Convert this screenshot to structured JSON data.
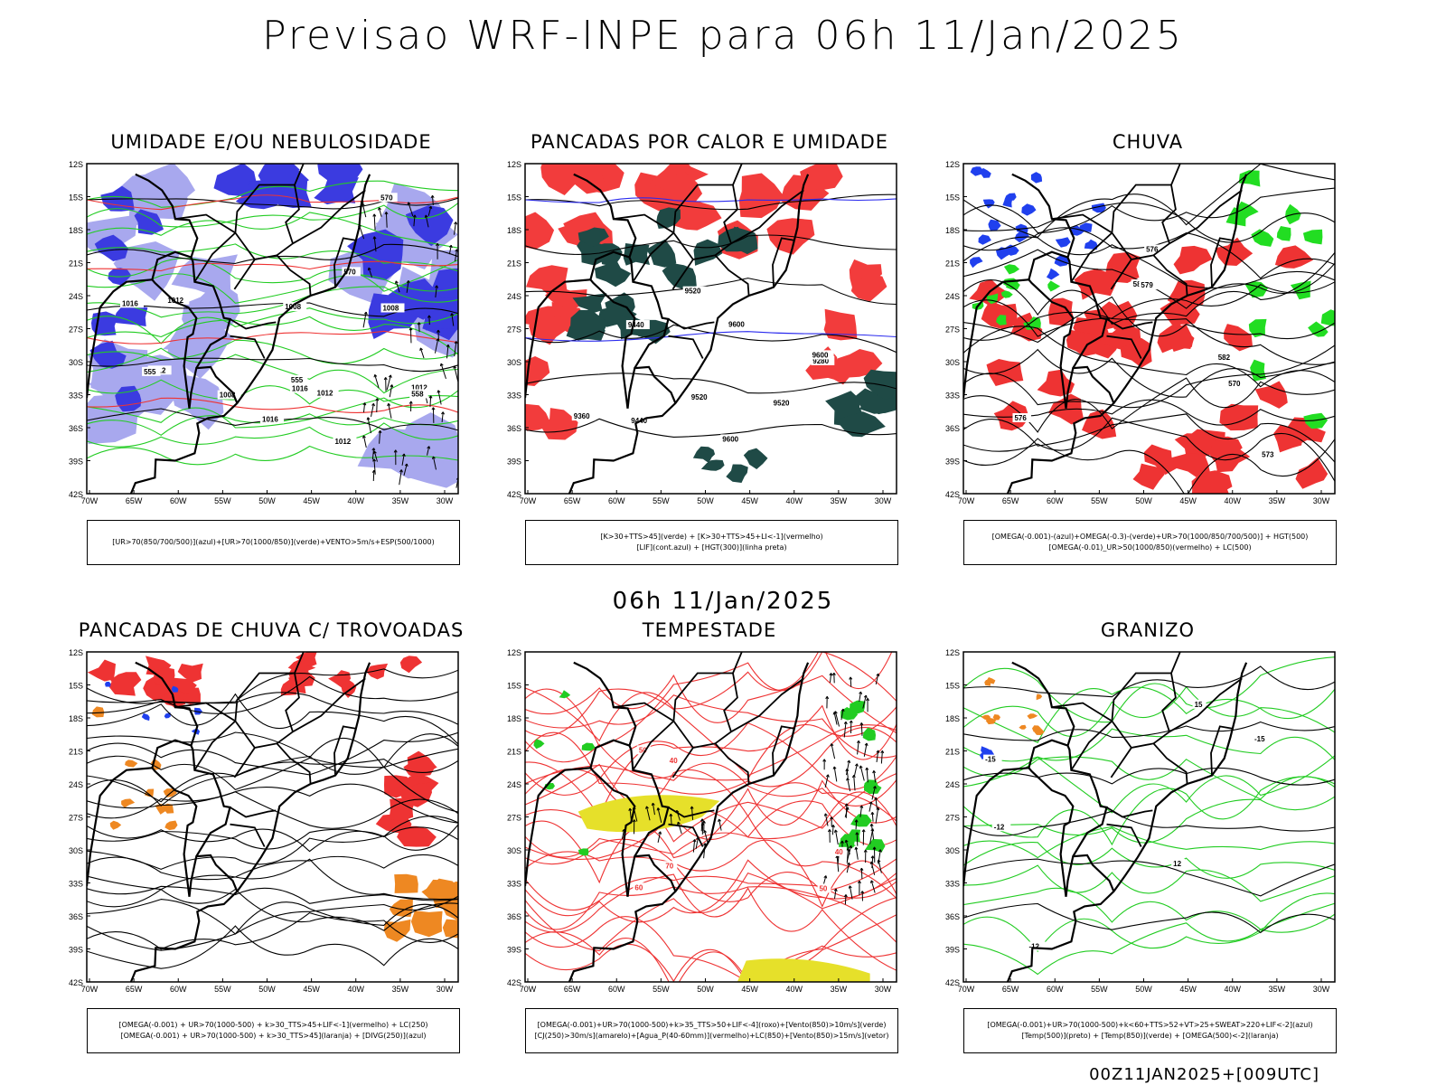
{
  "title": "Previsao WRF-INPE  para 06h 11/Jan/2025",
  "mid_date": "06h 11/Jan/2025",
  "footer": "00Z11JAN2025+[009UTC]",
  "axes": {
    "lat": [
      "12S",
      "15S",
      "18S",
      "21S",
      "24S",
      "27S",
      "30S",
      "33S",
      "36S",
      "39S",
      "42S"
    ],
    "lon": [
      "70W",
      "65W",
      "60W",
      "55W",
      "50W",
      "45W",
      "40W",
      "35W",
      "30W"
    ]
  },
  "panels": [
    {
      "title": "UMIDADE E/OU NEBULOSIDADE",
      "legend": [
        "[UR>70(850/700/500)](azul)+[UR>70(1000/850)](verde)+VENTO>5m/s+ESP(500/1000)"
      ],
      "labels": [
        "1012",
        "1008",
        "1016",
        "1012",
        "1008",
        "1012",
        "1012",
        "1008",
        "1016",
        "1012",
        "1016",
        "570",
        "570",
        "555",
        "555",
        "558"
      ],
      "colors": {
        "humid_mid": "#3b3be0",
        "humid_light": "#a8a8ee",
        "humid_low": "#22cc22",
        "thickness": "#ee3333"
      }
    },
    {
      "title": "PANCADAS POR CALOR E UMIDADE",
      "legend": [
        "[K>30+TTS>45](verde) + [K>30+TTS>45+LI<-1](vermelho)",
        "[LIF](cont.azul) + [HGT(300)](linha preta)"
      ],
      "labels": [
        "9600",
        "9600",
        "9520",
        "9520",
        "9440",
        "9440",
        "9360",
        "9280",
        "9520",
        "9600"
      ],
      "colors": {
        "unstable": "#1f4a46",
        "very_unstable": "#f23c3c",
        "lif": "#2a2aee"
      }
    },
    {
      "title": "CHUVA",
      "legend": [
        "[OMEGA(-0.001)-(azul)+OMEGA(-0.3)-(verde)+UR>70(1000/850/700/500)] + HGT(500)",
        "[OMEGA(-0.01)_UR>50(1000/850)(vermelho) + LC(500)"
      ],
      "labels": [
        "582",
        "582",
        "576",
        "573",
        "570",
        "576",
        "579"
      ],
      "colors": {
        "weak": "#2040ee",
        "strong": "#22dd22",
        "rain": "#ee3333"
      }
    },
    {
      "title": "PANCADAS DE CHUVA C/ TROVOADAS",
      "legend": [
        "[OMEGA(-0.001) + UR>70(1000-500) + k>30_TTS>45+LIF<-1](vermelho) + LC(250)",
        "[OMEGA(-0.001) + UR>70(1000-500) + k>30_TTS>45](laranja) + [DIVG(250)](azul)"
      ],
      "labels": [],
      "colors": {
        "storm": "#ee3333",
        "showers": "#ee8822",
        "divergence": "#2040ee"
      }
    },
    {
      "title": "TEMPESTADE",
      "legend": [
        "[OMEGA(-0.001)+UR>70(1000-500)+k>35_TTS>50+LIF<-4](roxo)+[Vento(850)>10m/s](verde)",
        "[CJ(250)>30m/s](amarelo)+[Agua_P(40-60mm)](vermelho)+LC(850)+[Vento(850)>15m/s](vetor)"
      ],
      "labels": [
        "70",
        "60",
        "50",
        "40",
        "50",
        "40"
      ],
      "colors": {
        "jet": "#e6e02a",
        "pw": "#ee3333",
        "wind": "#22cc22"
      }
    },
    {
      "title": "GRANIZO",
      "legend": [
        "[OMEGA(-0.001)+UR>70(1000-500)+k<60+TTS>52+VT>25+SWEAT>220+LIF<-2](azul)",
        "[Temp(500)](preto) + [Temp(850)](verde) + [OMEGA(500)<-2](laranja)"
      ],
      "labels": [
        "-12",
        "-12",
        "-15",
        "-15",
        "15",
        "12"
      ],
      "colors": {
        "t850": "#22cc22",
        "omega": "#ee8822",
        "hail": "#2040ee"
      }
    }
  ]
}
